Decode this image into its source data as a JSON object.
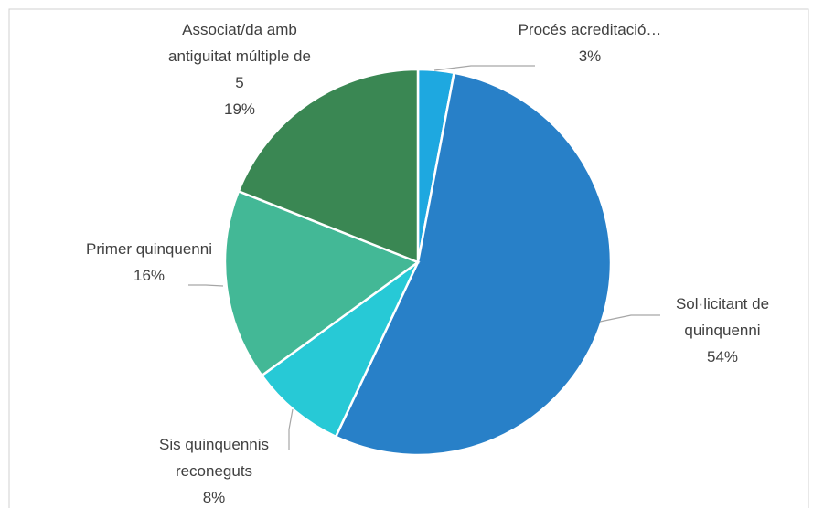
{
  "chart_data": {
    "type": "pie",
    "categories": [
      "Procés acreditació…",
      "Sol·licitant de quinquenni",
      "Sis quinquennis reconeguts",
      "Primer quinquenni",
      "Associat/da amb antiguitat múltiple de 5"
    ],
    "values": [
      3,
      54,
      8,
      16,
      19
    ],
    "value_labels": [
      "3%",
      "54%",
      "8%",
      "16%",
      "19%"
    ],
    "colors": [
      "#1ea8e0",
      "#2880c8",
      "#27c9d6",
      "#43b896",
      "#3a8753"
    ]
  }
}
